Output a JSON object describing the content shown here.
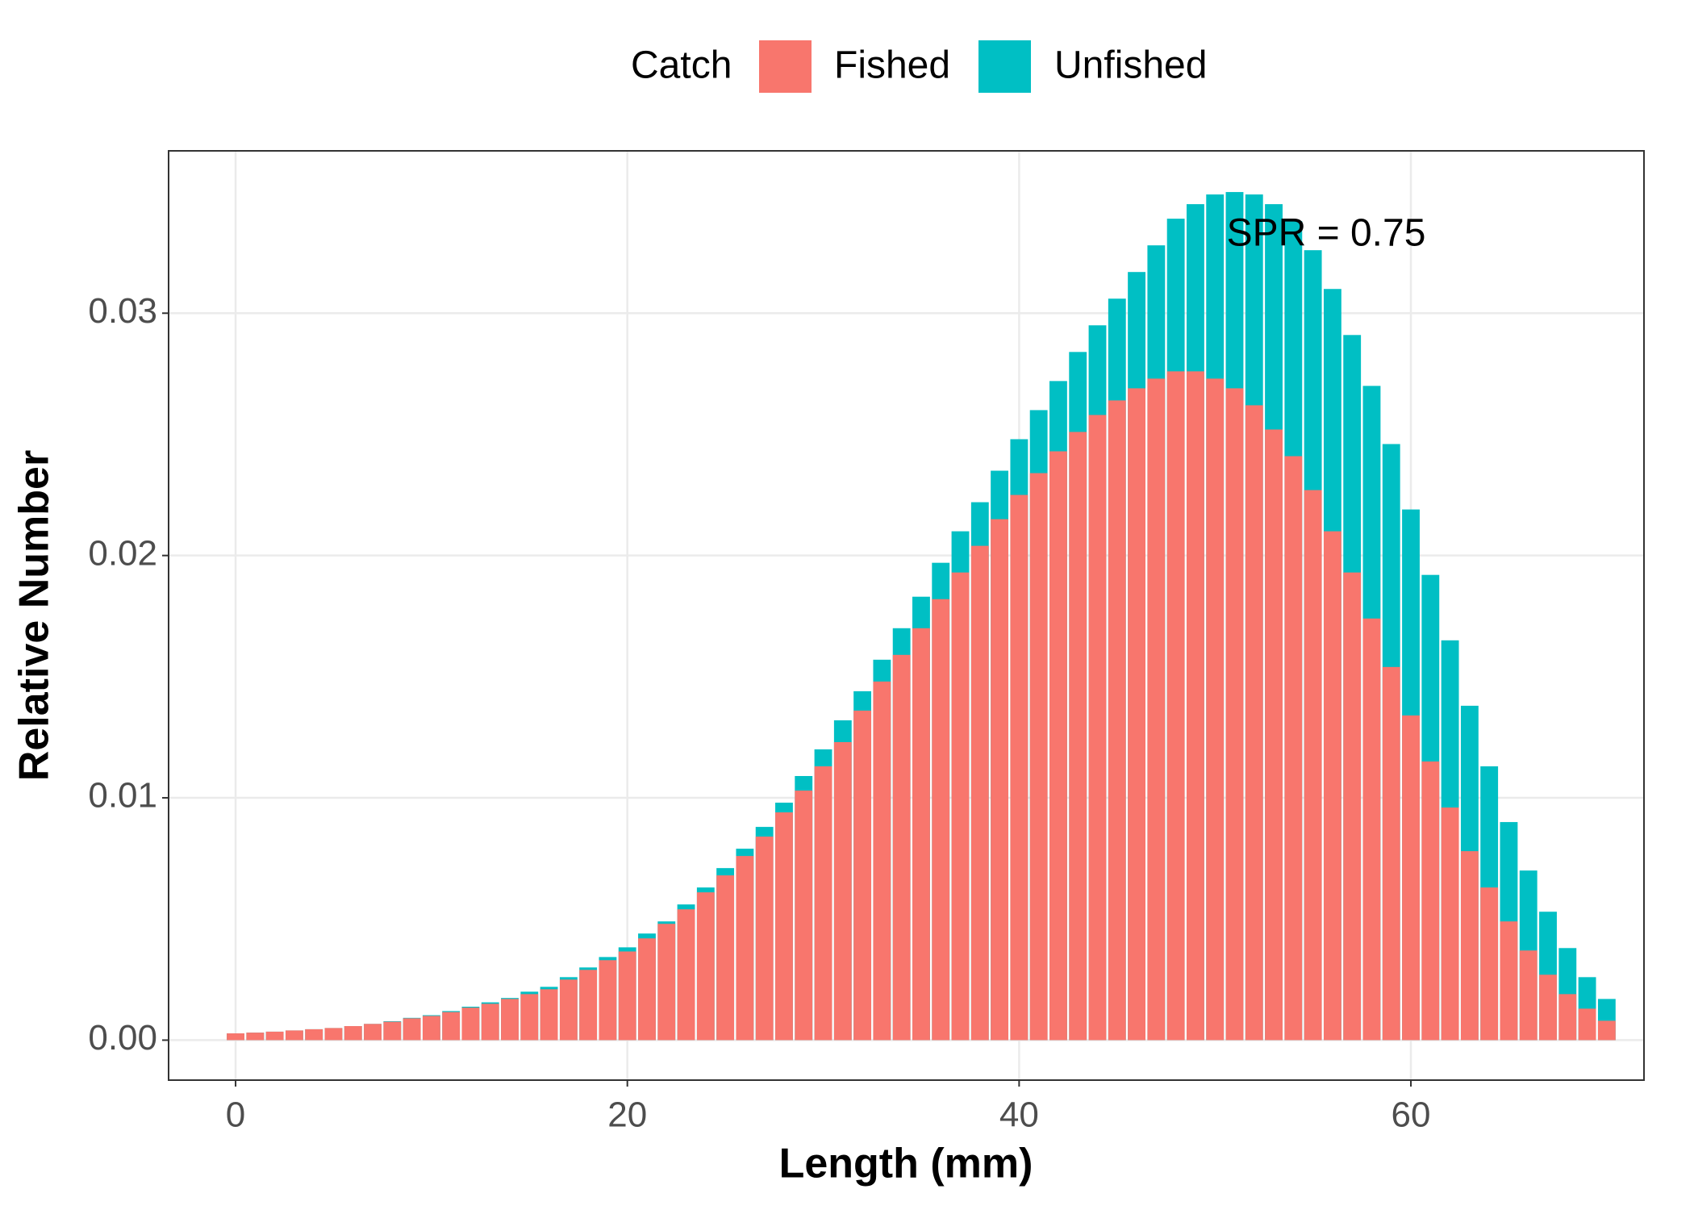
{
  "chart_data": {
    "type": "bar",
    "barmode": "overlay",
    "x": [
      0,
      1,
      2,
      3,
      4,
      5,
      6,
      7,
      8,
      9,
      10,
      11,
      12,
      13,
      14,
      15,
      16,
      17,
      18,
      19,
      20,
      21,
      22,
      23,
      24,
      25,
      26,
      27,
      28,
      29,
      30,
      31,
      32,
      33,
      34,
      35,
      36,
      37,
      38,
      39,
      40,
      41,
      42,
      43,
      44,
      45,
      46,
      47,
      48,
      49,
      50,
      51,
      52,
      53,
      54,
      55,
      56,
      57,
      58,
      59,
      60,
      61,
      62,
      63,
      64,
      65,
      66,
      67,
      68,
      69,
      70
    ],
    "legend_title": "Catch",
    "series": [
      {
        "name": "Fished",
        "color": "#F8766D",
        "values": [
          0.00028,
          0.00031,
          0.00035,
          0.0004,
          0.00045,
          0.0005,
          0.00058,
          0.00067,
          0.00076,
          0.0009,
          0.001,
          0.00116,
          0.00134,
          0.0015,
          0.0017,
          0.0019,
          0.0021,
          0.0025,
          0.0029,
          0.0033,
          0.00366,
          0.0042,
          0.0048,
          0.0054,
          0.0061,
          0.0068,
          0.0076,
          0.0084,
          0.0094,
          0.0103,
          0.0113,
          0.0123,
          0.0136,
          0.0148,
          0.0159,
          0.017,
          0.0182,
          0.0193,
          0.0204,
          0.0215,
          0.0225,
          0.0234,
          0.0243,
          0.0251,
          0.0258,
          0.0264,
          0.0269,
          0.0273,
          0.0276,
          0.0276,
          0.0273,
          0.0269,
          0.0262,
          0.0252,
          0.0241,
          0.0227,
          0.021,
          0.0193,
          0.0174,
          0.0154,
          0.0134,
          0.0115,
          0.0096,
          0.0078,
          0.0063,
          0.0049,
          0.0037,
          0.0027,
          0.0019,
          0.0013,
          0.0008
        ]
      },
      {
        "name": "Unfished",
        "color": "#00BFC4",
        "values": [
          0.00028,
          0.00031,
          0.00035,
          0.0004,
          0.00045,
          0.0005,
          0.00058,
          0.00067,
          0.00078,
          0.00092,
          0.00103,
          0.0012,
          0.00138,
          0.00156,
          0.00174,
          0.002,
          0.0022,
          0.0026,
          0.003,
          0.00343,
          0.00383,
          0.0044,
          0.0049,
          0.0056,
          0.0063,
          0.0071,
          0.0079,
          0.0088,
          0.0098,
          0.0109,
          0.012,
          0.0132,
          0.0144,
          0.0157,
          0.017,
          0.0183,
          0.0197,
          0.021,
          0.0222,
          0.0235,
          0.0248,
          0.026,
          0.0272,
          0.0284,
          0.0295,
          0.0306,
          0.0317,
          0.0328,
          0.0339,
          0.0345,
          0.0349,
          0.035,
          0.0349,
          0.0345,
          0.0338,
          0.0326,
          0.031,
          0.0291,
          0.027,
          0.0246,
          0.0219,
          0.0192,
          0.0165,
          0.0138,
          0.0113,
          0.009,
          0.007,
          0.0053,
          0.0038,
          0.0026,
          0.0017
        ]
      }
    ],
    "xlabel": "Length (mm)",
    "ylabel": "Relative Number",
    "annotation": "SPR = 0.75",
    "xlim": [
      -3.42,
      71.9
    ],
    "xticks": [
      0,
      20,
      40,
      60
    ],
    "ylim": [
      -0.00165,
      0.0367
    ],
    "yticks": [
      {
        "value": 0,
        "label": "0.00"
      },
      0.01,
      0.02,
      0.03
    ],
    "grid": true,
    "legend_position": "top"
  }
}
